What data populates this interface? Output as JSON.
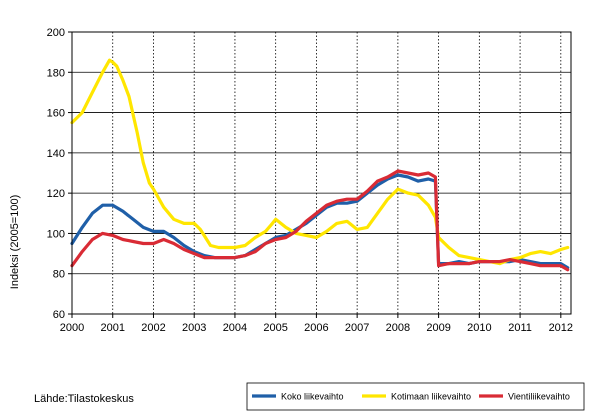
{
  "chart_data": {
    "type": "line",
    "title": "",
    "xlabel": "",
    "ylabel": "Indeksi (2005=100)",
    "ylim": [
      60,
      200
    ],
    "yticks": [
      60,
      80,
      100,
      120,
      140,
      160,
      180,
      200
    ],
    "xlim": [
      2000,
      2012.25
    ],
    "xticks": [
      2000,
      2001,
      2002,
      2003,
      2004,
      2005,
      2006,
      2007,
      2008,
      2009,
      2010,
      2011,
      2012
    ],
    "xtick_labels": [
      "2000",
      "2001",
      "2002",
      "2003",
      "2004",
      "2005",
      "2006",
      "2007",
      "2008",
      "2009",
      "2010",
      "2011",
      "2012"
    ],
    "grid": "horizontal solid, vertical dotted at years",
    "legend_position": "bottom-right",
    "source": "Lähde:Tilastokeskus",
    "series": [
      {
        "name": "Koko liikevaihto",
        "color": "#1f5fa8",
        "x": [
          2000,
          2000.25,
          2000.5,
          2000.75,
          2001,
          2001.25,
          2001.5,
          2001.75,
          2002,
          2002.25,
          2002.5,
          2002.75,
          2003,
          2003.25,
          2003.5,
          2003.75,
          2004,
          2004.25,
          2004.5,
          2004.75,
          2005,
          2005.25,
          2005.5,
          2005.75,
          2006,
          2006.25,
          2006.5,
          2006.75,
          2007,
          2007.25,
          2007.5,
          2007.75,
          2008,
          2008.25,
          2008.5,
          2008.75,
          2008.92,
          2009,
          2009.25,
          2009.5,
          2009.75,
          2010,
          2010.25,
          2010.5,
          2010.75,
          2011,
          2011.25,
          2011.5,
          2011.75,
          2012,
          2012.17
        ],
        "values": [
          95,
          103,
          110,
          114,
          114,
          111,
          107,
          103,
          101,
          101,
          98,
          94,
          91,
          89,
          88,
          88,
          88,
          89,
          92,
          95,
          98,
          99,
          102,
          105,
          109,
          113,
          115,
          115,
          116,
          120,
          124,
          127,
          129,
          128,
          126,
          127,
          126,
          85,
          85,
          86,
          85,
          86,
          86,
          86,
          86,
          87,
          86,
          85,
          85,
          85,
          83
        ]
      },
      {
        "name": "Kotimaan liikevaihto",
        "color": "#ffe600",
        "x": [
          2000,
          2000.25,
          2000.5,
          2000.75,
          2000.92,
          2001,
          2001.1,
          2001.25,
          2001.4,
          2001.6,
          2001.75,
          2001.9,
          2002,
          2002.25,
          2002.5,
          2002.75,
          2003,
          2003.15,
          2003.4,
          2003.6,
          2003.75,
          2004,
          2004.25,
          2004.5,
          2004.75,
          2004.92,
          2005,
          2005.25,
          2005.5,
          2005.75,
          2006,
          2006.25,
          2006.5,
          2006.75,
          2007,
          2007.25,
          2007.5,
          2007.75,
          2008,
          2008.25,
          2008.5,
          2008.75,
          2008.92,
          2009,
          2009.25,
          2009.5,
          2009.75,
          2010,
          2010.25,
          2010.5,
          2010.75,
          2011,
          2011.25,
          2011.5,
          2011.75,
          2012,
          2012.17
        ],
        "values": [
          155,
          160,
          170,
          180,
          186,
          185,
          183,
          176,
          168,
          150,
          135,
          125,
          122,
          113,
          107,
          105,
          105,
          102,
          94,
          93,
          93,
          93,
          94,
          98,
          101,
          105,
          107,
          103,
          100,
          99,
          98,
          101,
          105,
          106,
          102,
          103,
          110,
          117,
          122,
          120,
          119,
          114,
          108,
          98,
          93,
          89,
          88,
          87,
          86,
          85,
          87,
          88,
          90,
          91,
          90,
          92,
          93
        ]
      },
      {
        "name": "Vientiliikevaihto",
        "color": "#d92b35",
        "x": [
          2000,
          2000.25,
          2000.5,
          2000.75,
          2001,
          2001.25,
          2001.5,
          2001.75,
          2002,
          2002.25,
          2002.5,
          2002.75,
          2003,
          2003.25,
          2003.5,
          2003.75,
          2004,
          2004.25,
          2004.5,
          2004.75,
          2005,
          2005.25,
          2005.5,
          2005.75,
          2006,
          2006.25,
          2006.5,
          2006.75,
          2007,
          2007.25,
          2007.5,
          2007.75,
          2008,
          2008.25,
          2008.5,
          2008.75,
          2008.92,
          2009,
          2009.25,
          2009.5,
          2009.75,
          2010,
          2010.25,
          2010.5,
          2010.75,
          2011,
          2011.25,
          2011.5,
          2011.75,
          2012,
          2012.17
        ],
        "values": [
          84,
          91,
          97,
          100,
          99,
          97,
          96,
          95,
          95,
          97,
          95,
          92,
          90,
          88,
          88,
          88,
          88,
          89,
          91,
          95,
          97,
          98,
          101,
          106,
          110,
          114,
          116,
          117,
          117,
          121,
          126,
          128,
          131,
          130,
          129,
          130,
          128,
          84,
          85,
          85,
          85,
          86,
          86,
          86,
          87,
          86,
          85,
          84,
          84,
          84,
          82
        ]
      }
    ]
  }
}
